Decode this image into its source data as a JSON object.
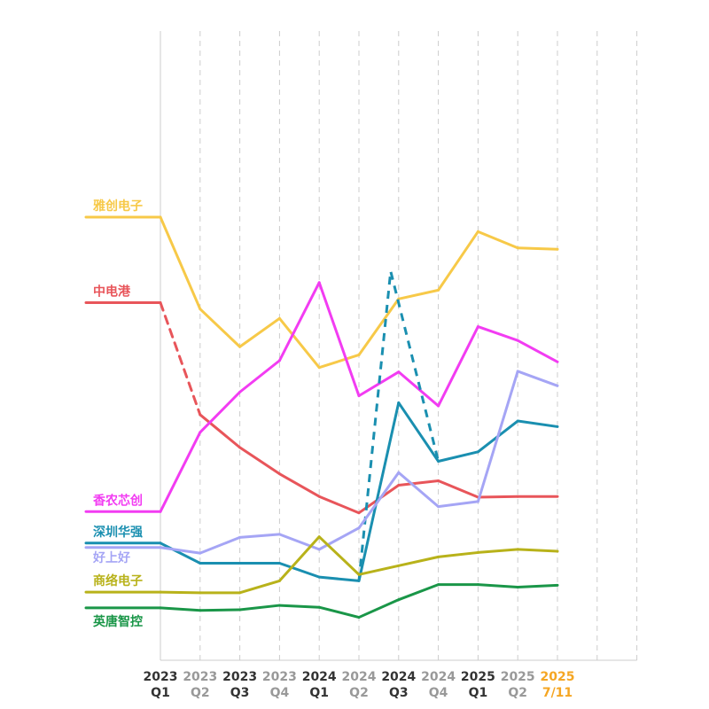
{
  "chart_data": {
    "type": "line",
    "title": "",
    "xlabel": "",
    "ylabel": "",
    "grid": "vertical-dashed",
    "legend": "inline-left",
    "y_axis_hidden": true,
    "ylim": [
      0,
      100
    ],
    "x_ticks": [
      {
        "year": "2023",
        "sub": "Q1",
        "style": "dark"
      },
      {
        "year": "2023",
        "sub": "Q2",
        "style": "grey"
      },
      {
        "year": "2023",
        "sub": "Q3",
        "style": "dark"
      },
      {
        "year": "2023",
        "sub": "Q4",
        "style": "grey"
      },
      {
        "year": "2024",
        "sub": "Q1",
        "style": "dark"
      },
      {
        "year": "2024",
        "sub": "Q2",
        "style": "grey"
      },
      {
        "year": "2024",
        "sub": "Q3",
        "style": "dark"
      },
      {
        "year": "2024",
        "sub": "Q4",
        "style": "grey"
      },
      {
        "year": "2025",
        "sub": "Q1",
        "style": "dark"
      },
      {
        "year": "2025",
        "sub": "Q2",
        "style": "grey"
      },
      {
        "year": "2025",
        "sub": "7/11",
        "style": "highlight"
      }
    ],
    "x_extra_gridlines": 2,
    "colors": {
      "dark_tick": "#333333",
      "grey_tick": "#999999",
      "highlight_tick": "#f5a623",
      "grid": "#cccccc"
    },
    "series": [
      {
        "name": "雅创电子",
        "color": "#f7c948",
        "values": [
          70.0,
          55.4,
          49.4,
          53.9,
          46.1,
          48.1,
          57.0,
          58.4,
          67.7,
          65.1,
          64.9
        ]
      },
      {
        "name": "中电港",
        "color": "#e8555a",
        "values": [
          56.4,
          38.6,
          33.4,
          29.2,
          25.6,
          23.0,
          27.4,
          28.1,
          25.5,
          25.6,
          25.6
        ],
        "dashed_segments": [
          0
        ]
      },
      {
        "name": "香农芯创",
        "color": "#f23cf2",
        "values": [
          23.2,
          35.8,
          42.2,
          47.2,
          59.6,
          41.6,
          45.4,
          40.0,
          52.6,
          50.4,
          47.0
        ]
      },
      {
        "name": "深圳华强",
        "color": "#1a8fb0",
        "values": [
          18.2,
          15.0,
          15.0,
          15.0,
          12.8,
          12.2,
          40.5,
          31.2,
          32.7,
          37.6,
          36.7
        ],
        "dashed_from_index": 5,
        "dashed_values": [
          12.2,
          61.4,
          31.2
        ]
      },
      {
        "name": "好上好",
        "color": "#a5a5f5",
        "values": [
          17.5,
          16.6,
          19.1,
          19.6,
          17.2,
          20.6,
          29.4,
          24.0,
          24.8,
          45.5,
          43.2
        ]
      },
      {
        "name": "商络电子",
        "color": "#b8b21a",
        "values": [
          10.4,
          10.3,
          10.3,
          12.2,
          19.2,
          13.2,
          14.6,
          16.0,
          16.7,
          17.2,
          16.9
        ]
      },
      {
        "name": "英唐智控",
        "color": "#1a9648",
        "values": [
          7.9,
          7.5,
          7.6,
          8.3,
          8.0,
          6.4,
          9.2,
          11.6,
          11.6,
          11.2,
          11.5
        ]
      }
    ]
  }
}
